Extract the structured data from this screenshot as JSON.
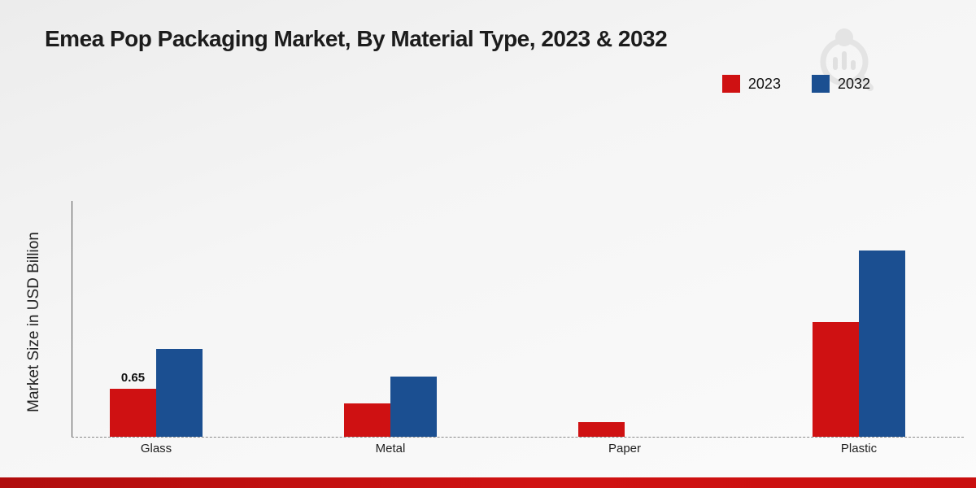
{
  "chart_data": {
    "type": "bar",
    "title": "Emea Pop Packaging Market, By Material Type, 2023 & 2032",
    "ylabel": "Market Size in USD Billion",
    "categories": [
      "Glass",
      "Metal",
      "Paper",
      "Plastic"
    ],
    "series": [
      {
        "name": "2023",
        "color": "#cf1112",
        "values": [
          0.65,
          0.45,
          0.2,
          1.57
        ]
      },
      {
        "name": "2032",
        "color": "#1b4f91",
        "values": [
          1.2,
          0.82,
          0.0,
          2.55
        ]
      }
    ],
    "value_labels": [
      {
        "category": "Glass",
        "series": "2023",
        "text": "0.65"
      }
    ],
    "ylim": [
      0,
      3
    ],
    "legend_position": "top-right",
    "baseline": "dashed",
    "accent_strip_color": "#c90f0f"
  }
}
